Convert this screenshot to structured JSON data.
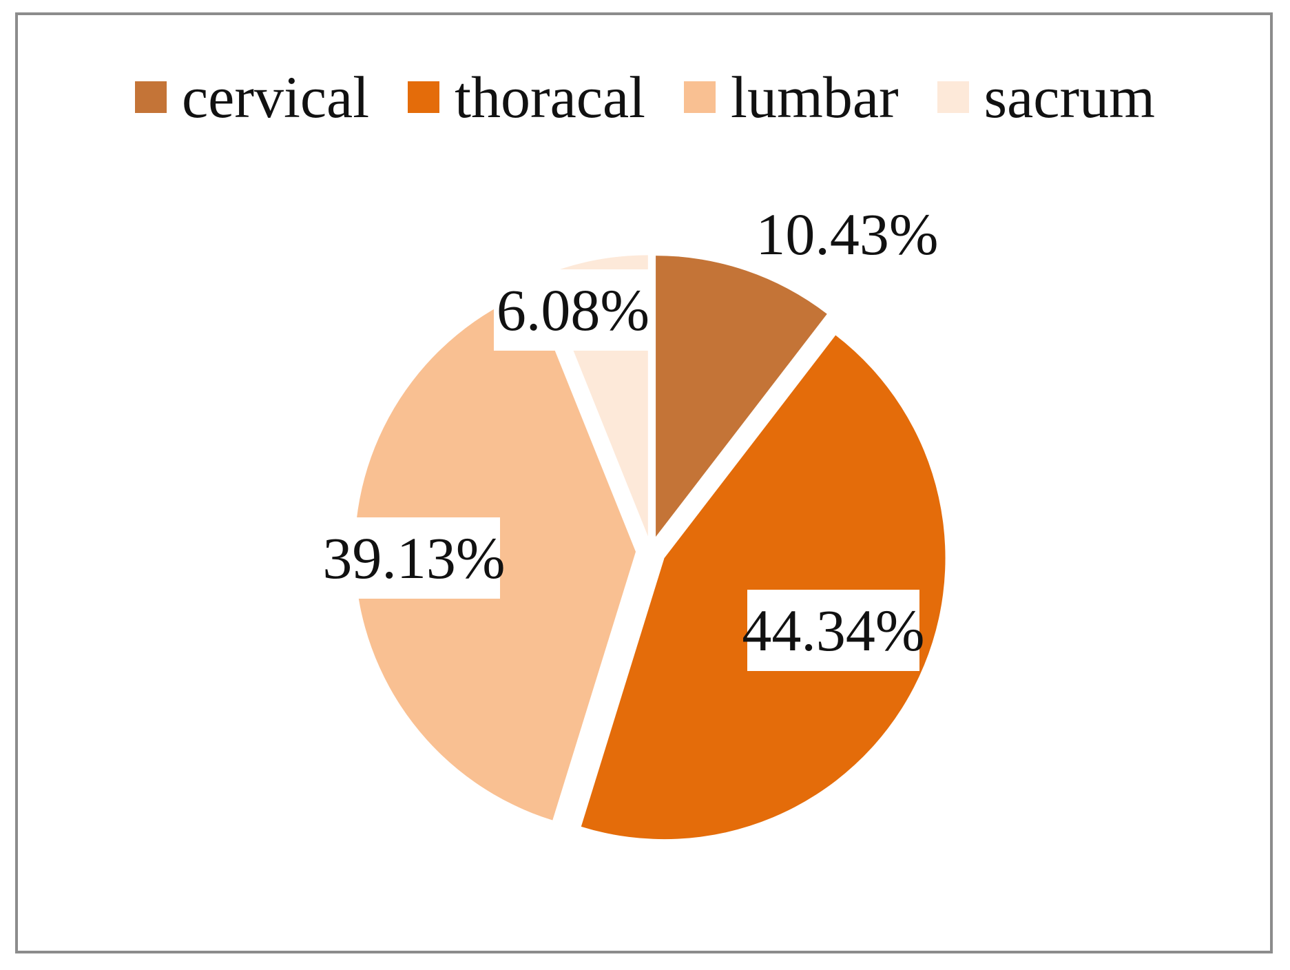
{
  "chart_data": {
    "type": "pie",
    "title": "",
    "legend_position": "top",
    "categories": [
      "cervical",
      "thoracal",
      "lumbar",
      "sacrum"
    ],
    "values": [
      10.43,
      44.34,
      39.13,
      6.08
    ],
    "labels": [
      "10.43%",
      "44.34%",
      "39.13%",
      "6.08%"
    ],
    "colors": [
      "#c47437",
      "#e46c0a",
      "#f9c092",
      "#fde9d9"
    ],
    "exploded": true
  },
  "legend": {
    "items": [
      {
        "label": "cervical",
        "color": "#c47437"
      },
      {
        "label": "thoracal",
        "color": "#e46c0a"
      },
      {
        "label": "lumbar",
        "color": "#f9c092"
      },
      {
        "label": "sacrum",
        "color": "#fde9d9"
      }
    ]
  }
}
